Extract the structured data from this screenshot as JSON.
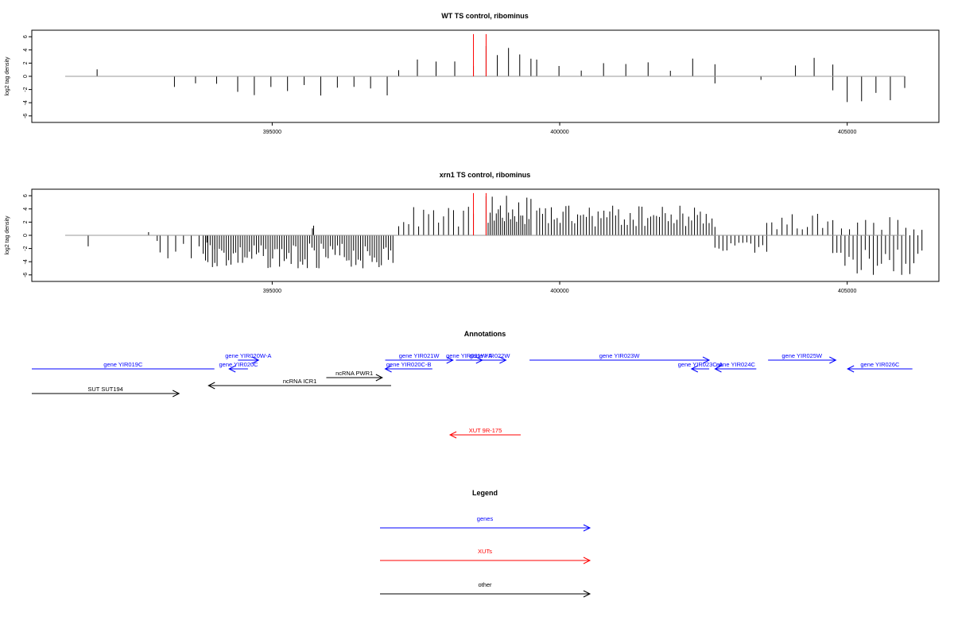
{
  "colors": {
    "genes": "#0000ff",
    "xuts": "#ff0000",
    "other": "#000000",
    "axis": "#000000",
    "baseline": "#999999"
  },
  "chart_data": [
    {
      "type": "bar",
      "title": "WT TS control, ribominus",
      "ylabel": "log2 tag density",
      "xlim": [
        391200,
        406600
      ],
      "ylim": [
        -6.5,
        6.5
      ],
      "yticks": [
        -6,
        -4,
        -2,
        0,
        2,
        4,
        6
      ],
      "xticks": [
        395000,
        400000,
        405000
      ],
      "xtick_labels": [
        "395000",
        "400000",
        "405000"
      ],
      "highlight_positions": [
        398500,
        398720
      ],
      "density_segments": [
        {
          "start": 391950,
          "end": 391960,
          "sign": 1,
          "amp": 1.6,
          "density": 1,
          "seed": 1
        },
        {
          "start": 393300,
          "end": 394400,
          "sign": -1,
          "amp": 3.0,
          "density": 0.035,
          "seed": 2
        },
        {
          "start": 394400,
          "end": 397000,
          "sign": -1,
          "amp": 3.0,
          "density": 0.04,
          "seed": 3
        },
        {
          "start": 397200,
          "end": 398500,
          "sign": 1,
          "amp": 3.2,
          "density": 0.035,
          "seed": 4
        },
        {
          "start": 398720,
          "end": 399500,
          "sign": 1,
          "amp": 5.0,
          "density": 0.06,
          "seed": 5
        },
        {
          "start": 399600,
          "end": 402700,
          "sign": 1,
          "amp": 3.2,
          "density": 0.03,
          "seed": 6
        },
        {
          "start": 402700,
          "end": 403500,
          "sign": -1,
          "amp": 1.6,
          "density": 0.03,
          "seed": 7
        },
        {
          "start": 404100,
          "end": 404750,
          "sign": 1,
          "amp": 3.0,
          "density": 0.04,
          "seed": 8
        },
        {
          "start": 404750,
          "end": 406000,
          "sign": -1,
          "amp": 5.0,
          "density": 0.05,
          "seed": 9
        }
      ]
    },
    {
      "type": "bar",
      "title": "xrn1 TS control, ribominus",
      "ylabel": "log2 tag density",
      "xlim": [
        391200,
        406600
      ],
      "ylim": [
        -6.5,
        6.5
      ],
      "yticks": [
        -6,
        -4,
        -2,
        0,
        2,
        4,
        6
      ],
      "xticks": [
        395000,
        400000,
        405000
      ],
      "xtick_labels": [
        "395000",
        "400000",
        "405000"
      ],
      "highlight_positions": [
        398500,
        398720
      ],
      "density_segments": [
        {
          "start": 391800,
          "end": 393000,
          "sign": -1,
          "amp": 1.8,
          "density": 0.02,
          "seed": 11
        },
        {
          "start": 392700,
          "end": 393000,
          "sign": 1,
          "amp": 0.6,
          "density": 0.02,
          "seed": 12
        },
        {
          "start": 393050,
          "end": 394000,
          "sign": -1,
          "amp": 3.8,
          "density": 0.08,
          "seed": 13
        },
        {
          "start": 393800,
          "end": 397100,
          "sign": -1,
          "amp": 5.0,
          "density": 0.25,
          "seed": 14
        },
        {
          "start": 395700,
          "end": 395720,
          "sign": 1,
          "amp": 2.4,
          "density": 1,
          "seed": 15
        },
        {
          "start": 397200,
          "end": 398500,
          "sign": 1,
          "amp": 4.4,
          "density": 0.12,
          "seed": 16
        },
        {
          "start": 398720,
          "end": 399500,
          "sign": 1,
          "amp": 6.3,
          "density": 0.3,
          "seed": 17
        },
        {
          "start": 399600,
          "end": 402700,
          "sign": 1,
          "amp": 4.6,
          "density": 0.2,
          "seed": 18
        },
        {
          "start": 402700,
          "end": 403600,
          "sign": -1,
          "amp": 2.7,
          "density": 0.15,
          "seed": 19
        },
        {
          "start": 403600,
          "end": 404750,
          "sign": 1,
          "amp": 3.3,
          "density": 0.12,
          "seed": 20
        },
        {
          "start": 404750,
          "end": 406300,
          "sign": -1,
          "amp": 6.0,
          "density": 0.15,
          "seed": 21
        },
        {
          "start": 404900,
          "end": 406300,
          "sign": 1,
          "amp": 3.2,
          "density": 0.08,
          "seed": 22
        }
      ]
    }
  ],
  "annotations": {
    "title": "Annotations",
    "xlim": [
      391200,
      406600
    ],
    "features": [
      {
        "label": "gene YIR019C",
        "start": 391200,
        "end": 394300,
        "strand": "-",
        "type": "genes",
        "row": 1,
        "arrow": false
      },
      {
        "label": "gene YIR020W-A",
        "start": 394700,
        "end": 395050,
        "strand": "+",
        "type": "genes",
        "row": 0,
        "arrow": true
      },
      {
        "label": "gene YIR020C",
        "start": 394550,
        "end": 394870,
        "strand": "-",
        "type": "genes",
        "row": 1,
        "arrow": true
      },
      {
        "label": "gene YIR021W",
        "start": 397200,
        "end": 398350,
        "strand": "+",
        "type": "genes",
        "row": 0,
        "arrow": true
      },
      {
        "label": "gene YIR020C-B",
        "start": 397200,
        "end": 398000,
        "strand": "-",
        "type": "genes",
        "row": 1,
        "arrow": true
      },
      {
        "label": "gene YIR021W-A",
        "start": 398400,
        "end": 398850,
        "strand": "+",
        "type": "genes",
        "row": 0,
        "arrow": true
      },
      {
        "label": "gene YIR022W",
        "start": 398700,
        "end": 399250,
        "strand": "+",
        "type": "genes",
        "row": 0,
        "arrow": true
      },
      {
        "label": "gene YIR023W",
        "start": 399650,
        "end": 402700,
        "strand": "+",
        "type": "genes",
        "row": 0,
        "arrow": true
      },
      {
        "label": "gene YIR023C-A",
        "start": 402400,
        "end": 402700,
        "strand": "-",
        "type": "genes",
        "row": 1,
        "arrow": true
      },
      {
        "label": "gene YIR024C",
        "start": 402800,
        "end": 403500,
        "strand": "-",
        "type": "genes",
        "row": 1,
        "arrow": true
      },
      {
        "label": "gene YIR025W",
        "start": 403700,
        "end": 404850,
        "strand": "+",
        "type": "genes",
        "row": 0,
        "arrow": true
      },
      {
        "label": "gene YIR026C",
        "start": 405050,
        "end": 406150,
        "strand": "-",
        "type": "genes",
        "row": 1,
        "arrow": true
      },
      {
        "label": "ncRNA PWR1",
        "start": 396200,
        "end": 397150,
        "strand": "+",
        "type": "other",
        "row": 2,
        "arrow": true
      },
      {
        "label": "ncRNA ICR1",
        "start": 394200,
        "end": 397300,
        "strand": "-",
        "type": "other",
        "row": 3,
        "arrow": true
      },
      {
        "label": "SUT SUT194",
        "start": 391200,
        "end": 393700,
        "strand": "+",
        "type": "other",
        "row": 4,
        "arrow": true
      },
      {
        "label": "XUT 9R-175",
        "start": 398300,
        "end": 399500,
        "strand": "-",
        "type": "xuts",
        "row": 5,
        "arrow": true
      }
    ]
  },
  "legend": {
    "title": "Legend",
    "items": [
      {
        "label": "genes",
        "type": "genes"
      },
      {
        "label": "XUTs",
        "type": "xuts"
      },
      {
        "label": "other",
        "type": "other"
      }
    ]
  }
}
